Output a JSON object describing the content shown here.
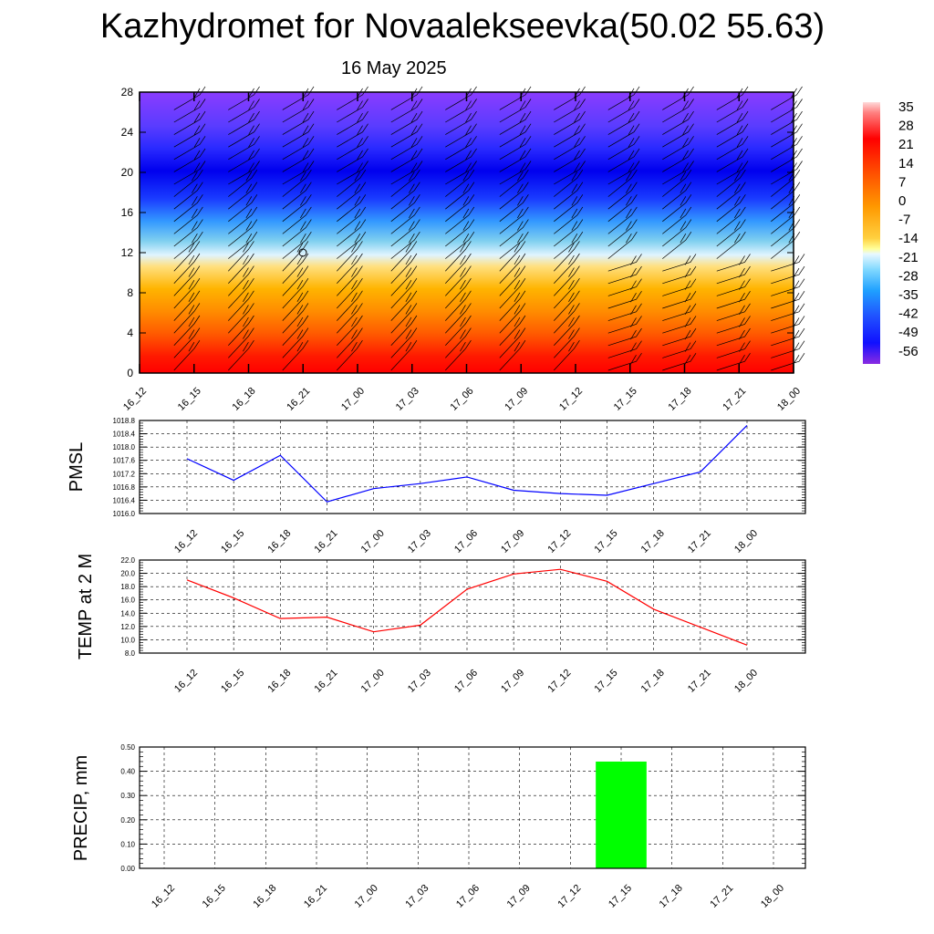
{
  "title": "Kazhydromet for Novaalekseevka(50.02 55.63)",
  "subtitle": "16 May 2025",
  "colors": {
    "pmsl": "#0000ff",
    "temp": "#ff0000",
    "precip": "#00ff00"
  },
  "chart_data": [
    {
      "type": "heatmap",
      "x_ticks": [
        "16_12",
        "16_15",
        "16_18",
        "16_21",
        "17_00",
        "17_03",
        "17_06",
        "17_09",
        "17_12",
        "17_15",
        "17_18",
        "17_21",
        "18_00"
      ],
      "y_ticks": [
        "0",
        "4",
        "8",
        "12",
        "16",
        "20",
        "24",
        "28"
      ],
      "ylim": [
        0,
        28
      ],
      "colorbar_labels": [
        "35",
        "28",
        "21",
        "14",
        "7",
        "0",
        "-7",
        "-14",
        "-21",
        "-28",
        "-35",
        "-42",
        "-49",
        "-56"
      ],
      "overlay": "wind barbs"
    },
    {
      "type": "line",
      "ylabel": "PMSL",
      "categories": [
        "16_12",
        "16_15",
        "16_18",
        "16_21",
        "17_00",
        "17_03",
        "17_06",
        "17_09",
        "17_12",
        "17_15",
        "17_18",
        "17_21",
        "18_00"
      ],
      "values": [
        1017.65,
        1017.0,
        1017.75,
        1016.35,
        1016.75,
        1016.9,
        1017.1,
        1016.7,
        1016.6,
        1016.55,
        1016.9,
        1017.25,
        1018.65
      ],
      "ylim": [
        1016.0,
        1018.8
      ],
      "y_ticks": [
        "1016.0",
        "1016.4",
        "1016.8",
        "1017.2",
        "1017.6",
        "1018.0",
        "1018.4",
        "1018.8"
      ]
    },
    {
      "type": "line",
      "ylabel": "TEMP at 2 M",
      "categories": [
        "16_12",
        "16_15",
        "16_18",
        "16_21",
        "17_00",
        "17_03",
        "17_06",
        "17_09",
        "17_12",
        "17_15",
        "17_18",
        "17_21",
        "18_00"
      ],
      "values": [
        19.0,
        16.3,
        13.2,
        13.4,
        11.2,
        12.2,
        17.6,
        19.9,
        20.6,
        18.8,
        14.6,
        11.9,
        9.2
      ],
      "ylim": [
        8.0,
        22.0
      ],
      "y_ticks": [
        "8.0",
        "10.0",
        "12.0",
        "14.0",
        "16.0",
        "18.0",
        "20.0",
        "22.0"
      ]
    },
    {
      "type": "bar",
      "ylabel": "PRECIP, mm",
      "categories": [
        "16_12",
        "16_15",
        "16_18",
        "16_21",
        "17_00",
        "17_03",
        "17_06",
        "17_09",
        "17_12",
        "17_15",
        "17_18",
        "17_21",
        "18_00"
      ],
      "values": [
        0,
        0,
        0,
        0,
        0,
        0,
        0,
        0,
        0,
        0.44,
        0,
        0,
        0
      ],
      "ylim": [
        0,
        0.5
      ],
      "y_ticks": [
        "0.00",
        "0.10",
        "0.20",
        "0.30",
        "0.40",
        "0.50"
      ]
    }
  ]
}
